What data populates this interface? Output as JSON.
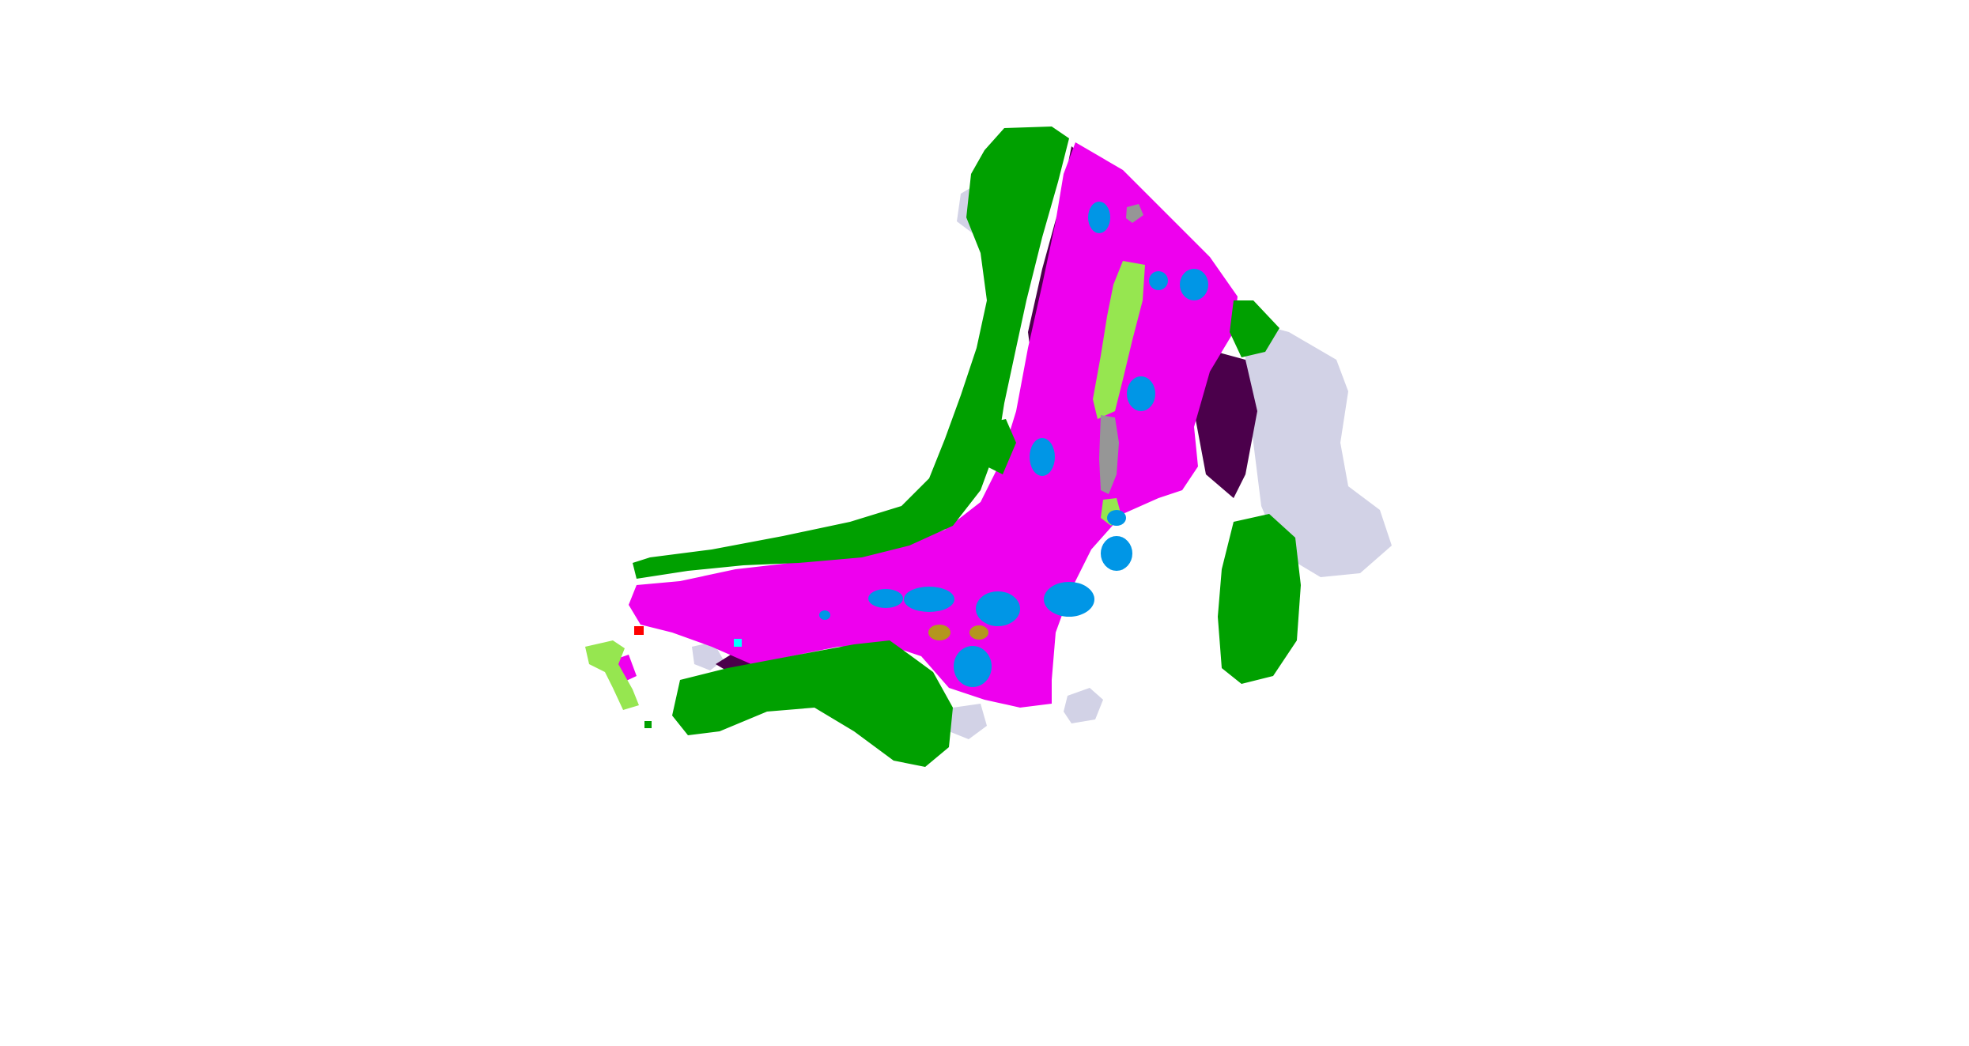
{
  "scene": {
    "kind": "semantic-voxel-reconstruction",
    "background": "#ffffff",
    "palette": {
      "road": "#ee00ee",
      "vegetation": "#00a000",
      "terrain": "#96e650",
      "building": "#d2d2e6",
      "car": "#0096e6",
      "sidewalk": "#4b004b",
      "pole": "#969696",
      "traffic_sign": "#ff0000",
      "person": "#00ffff",
      "other_object": "#b4961e"
    }
  }
}
